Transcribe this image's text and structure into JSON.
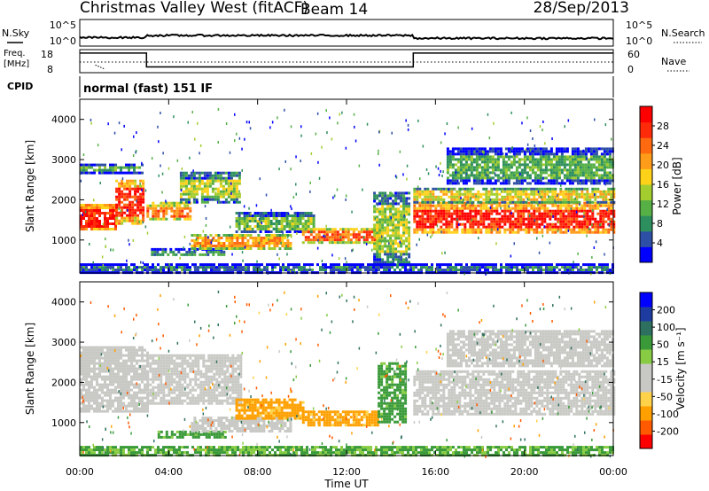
{
  "header": {
    "radar": "Christmas Valley West (fitACF)",
    "beam": "Beam 14",
    "date": "28/Sep/2013"
  },
  "noise_panel": {
    "left_label": "N.Sky",
    "right_label": "N.Search",
    "left_ticks": [
      "10^5",
      "10^0"
    ],
    "right_ticks": [
      "10^5",
      "10^0"
    ]
  },
  "freq_panel": {
    "left_label_line1": "Freq.",
    "left_label_line2": "[MHz]",
    "right_label": "Nave",
    "left_ticks": [
      "18",
      "8"
    ],
    "right_ticks": [
      "60",
      "0"
    ]
  },
  "cpid_panel": {
    "label": "CPID",
    "text": "normal (fast) 151 IF"
  },
  "axes": {
    "ylabel": "Slant Range [km]",
    "xlabel": "Time UT",
    "y_ticks": [
      "1000",
      "2000",
      "3000",
      "4000"
    ],
    "x_ticks": [
      "00:00",
      "04:00",
      "08:00",
      "12:00",
      "16:00",
      "20:00",
      "00:00"
    ]
  },
  "colors": {
    "power": [
      "#0000ff",
      "#2e4fa6",
      "#2e8f5e",
      "#56b046",
      "#a3cc2e",
      "#ffd21a",
      "#ff9d1a",
      "#ff6a10",
      "#ff2a0a",
      "#ff0000"
    ],
    "velocity": [
      "#ff0000",
      "#ff5a00",
      "#ffa000",
      "#ffd24a",
      "#c8c8c4",
      "#c8c8c4",
      "#88cc44",
      "#3a9a3a",
      "#2e7060",
      "#1e3ca0",
      "#0000ff"
    ]
  },
  "chart_data": {
    "type": "heatmap",
    "x_range_hours": [
      0,
      24
    ],
    "y_range_km": [
      180,
      4500
    ],
    "grid": false,
    "power_panel": {
      "colorbar_label": "Power [dB]",
      "colorbar_ticks": [
        "4",
        "8",
        "12",
        "16",
        "20",
        "24",
        "28"
      ],
      "bands": [
        {
          "t0": 0.0,
          "t1": 1.6,
          "r0": 1250,
          "r1": 1900,
          "level": 27
        },
        {
          "t0": 1.6,
          "t1": 2.9,
          "r0": 1400,
          "r1": 2500,
          "level": 26
        },
        {
          "t0": 0.0,
          "t1": 2.8,
          "r0": 2700,
          "r1": 2900,
          "level": 10
        },
        {
          "t0": 3.0,
          "t1": 5.0,
          "r0": 1500,
          "r1": 1950,
          "level": 22
        },
        {
          "t0": 4.5,
          "t1": 7.2,
          "r0": 1950,
          "r1": 2700,
          "level": 14
        },
        {
          "t0": 3.2,
          "t1": 6.5,
          "r0": 620,
          "r1": 800,
          "level": 8
        },
        {
          "t0": 5.0,
          "t1": 9.5,
          "r0": 800,
          "r1": 1150,
          "level": 20
        },
        {
          "t0": 7.0,
          "t1": 10.5,
          "r0": 1200,
          "r1": 1700,
          "level": 12
        },
        {
          "t0": 10.0,
          "t1": 13.5,
          "r0": 950,
          "r1": 1300,
          "level": 22
        },
        {
          "t0": 13.2,
          "t1": 14.8,
          "r0": 400,
          "r1": 2200,
          "level": 14
        },
        {
          "t0": 15.0,
          "t1": 24.0,
          "r0": 1200,
          "r1": 1950,
          "level": 27
        },
        {
          "t0": 15.0,
          "t1": 24.0,
          "r0": 1950,
          "r1": 2300,
          "level": 16
        },
        {
          "t0": 16.5,
          "t1": 24.0,
          "r0": 2400,
          "r1": 3300,
          "level": 10
        },
        {
          "t0": 0.0,
          "t1": 24.0,
          "r0": 220,
          "r1": 420,
          "level": 6
        }
      ]
    },
    "velocity_panel": {
      "colorbar_label": "Velocity [m s⁻¹]",
      "colorbar_ticks": [
        "-200",
        "-100",
        "-50",
        "-15",
        "15",
        "50",
        "100",
        "200"
      ],
      "bands": [
        {
          "t0": 0.0,
          "t1": 3.0,
          "r0": 1250,
          "r1": 2900,
          "value": 0
        },
        {
          "t0": 3.0,
          "t1": 7.2,
          "r0": 1500,
          "r1": 2700,
          "value": 0
        },
        {
          "t0": 3.5,
          "t1": 6.5,
          "r0": 620,
          "r1": 800,
          "value": 40
        },
        {
          "t0": 5.0,
          "t1": 9.5,
          "r0": 800,
          "r1": 1150,
          "value": 0
        },
        {
          "t0": 7.0,
          "t1": 10.0,
          "r0": 1100,
          "r1": 1600,
          "value": -40
        },
        {
          "t0": 10.0,
          "t1": 13.4,
          "r0": 950,
          "r1": 1300,
          "value": -40
        },
        {
          "t0": 13.4,
          "t1": 14.6,
          "r0": 1000,
          "r1": 2500,
          "value": 40
        },
        {
          "t0": 15.0,
          "t1": 24.0,
          "r0": 1200,
          "r1": 2300,
          "value": 0
        },
        {
          "t0": 16.5,
          "t1": 24.0,
          "r0": 2400,
          "r1": 3300,
          "value": 0
        },
        {
          "t0": 0.0,
          "t1": 24.0,
          "r0": 220,
          "r1": 420,
          "value": 35
        }
      ]
    },
    "noise": {
      "x": [
        0,
        3,
        3,
        15,
        15,
        24
      ],
      "sky": [
        1.2,
        1.2,
        1.5,
        1.5,
        1.1,
        1.1
      ]
    },
    "freq": {
      "x": [
        0,
        3,
        3,
        15,
        15,
        24
      ],
      "mhz": [
        16.5,
        16.5,
        10.5,
        10.5,
        16.5,
        16.5
      ],
      "nave_x": [
        0.7,
        1.1
      ],
      "nave": [
        20,
        10
      ]
    }
  }
}
